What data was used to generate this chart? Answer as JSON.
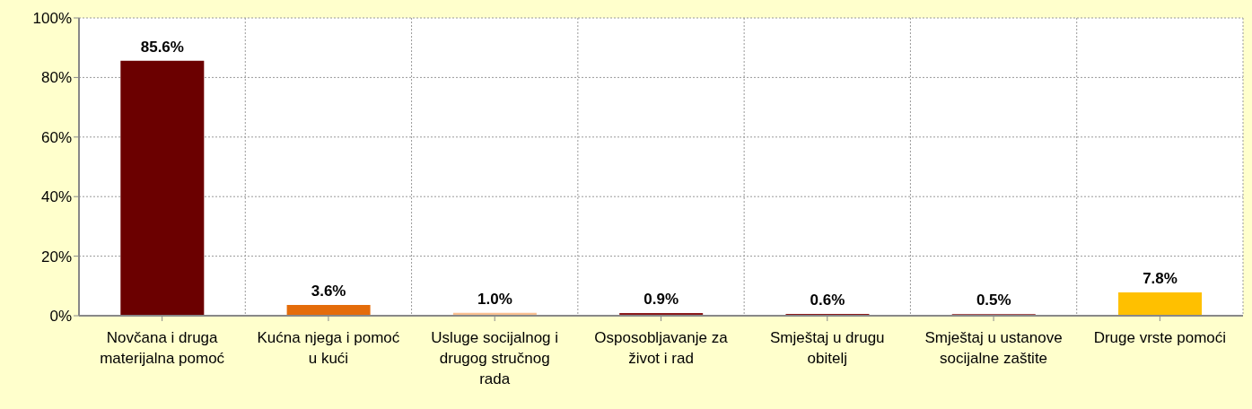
{
  "chart_data": {
    "type": "bar",
    "categories": [
      "Novčana i druga materijalna pomoć",
      "Kućna njega i pomoć u kući",
      "Usluge socijalnog i drugog stručnog rada",
      "Osposobljavanje za život i rad",
      "Smještaj u drugu obitelj",
      "Smještaj u ustanove socijalne zaštite",
      "Druge vrste pomoći"
    ],
    "values": [
      85.6,
      3.6,
      1.0,
      0.9,
      0.6,
      0.5,
      7.8
    ],
    "colors": [
      "#6b0000",
      "#e46c0a",
      "#fac090",
      "#8b1a1a",
      "#8b1a1a",
      "#8b1a1a",
      "#ffc000"
    ],
    "value_labels": [
      "85.6%",
      "3.6%",
      "1.0%",
      "0.9%",
      "0.6%",
      "0.5%",
      "7.8%"
    ],
    "ylim": [
      0,
      100
    ],
    "yticks": [
      {
        "value": 0,
        "label": "0%"
      },
      {
        "value": 20,
        "label": "20%"
      },
      {
        "value": 40,
        "label": "40%"
      },
      {
        "value": 60,
        "label": "60%"
      },
      {
        "value": 80,
        "label": "80%"
      },
      {
        "value": 100,
        "label": "100%"
      }
    ],
    "grid": true
  }
}
